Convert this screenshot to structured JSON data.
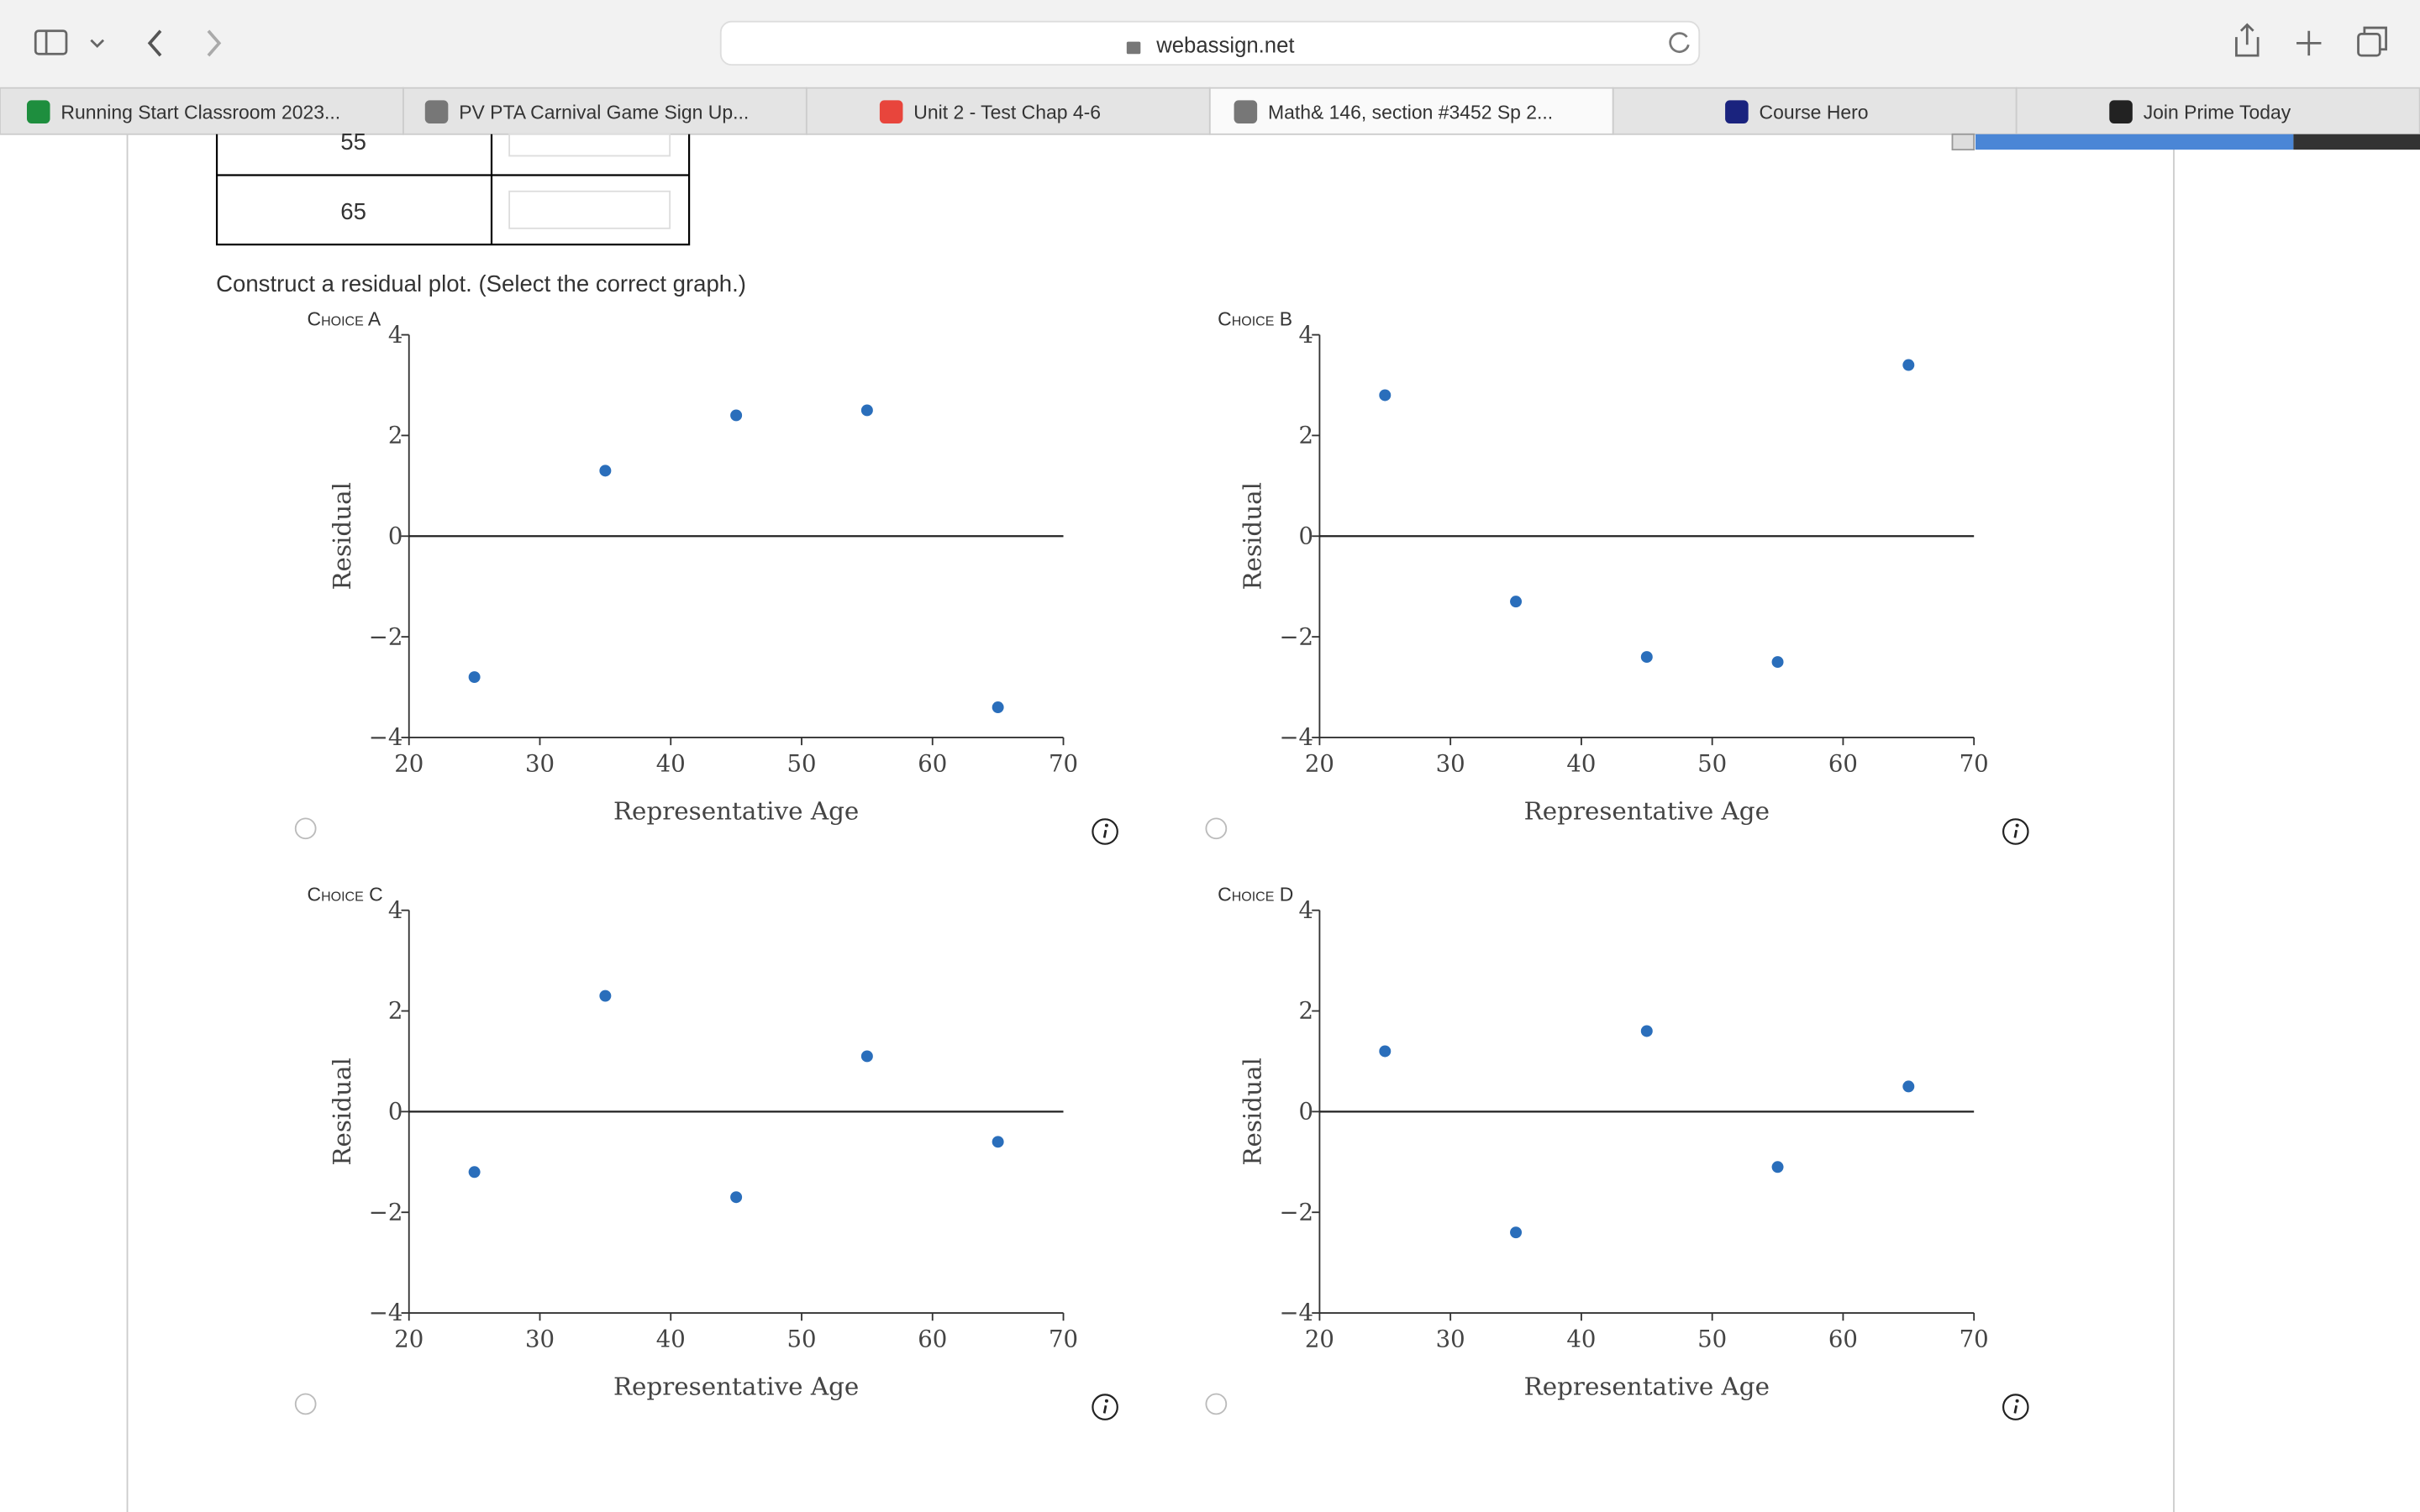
{
  "browser": {
    "url": "webassign.net",
    "tabs": [
      "Running Start Classroom 2023...",
      "PV PTA Carnival Game Sign Up...",
      "Unit 2 - Test Chap 4-6",
      "Math& 146, section #3452 Sp 2...",
      "Course Hero",
      "Join Prime Today"
    ]
  },
  "table_rows": [
    "55",
    "65"
  ],
  "prompt": "Construct a residual plot. (Select the correct graph.)",
  "choices": [
    {
      "label": "Choice A",
      "chart_data": {
        "type": "scatter",
        "x_label": "Representative Age",
        "y_label": "Residual",
        "color": "#2a6ebb",
        "x": [
          25,
          35,
          45,
          55,
          65
        ],
        "values": [
          -2.8,
          1.3,
          2.4,
          2.5,
          -3.4
        ],
        "xlim": [
          20,
          70
        ],
        "ylim": [
          -4,
          4
        ],
        "xticks": [
          20,
          30,
          40,
          50,
          60,
          70
        ],
        "yticks": [
          {
            "value": -4,
            "label": "−4"
          },
          {
            "value": -2,
            "label": "−2"
          },
          0,
          2,
          4
        ]
      }
    },
    {
      "label": "Choice B",
      "chart_data": {
        "type": "scatter",
        "x_label": "Representative Age",
        "y_label": "Residual",
        "color": "#2a6ebb",
        "x": [
          25,
          35,
          45,
          55,
          65
        ],
        "values": [
          2.8,
          -1.3,
          -2.4,
          -2.5,
          3.4
        ],
        "xlim": [
          20,
          70
        ],
        "ylim": [
          -4,
          4
        ],
        "xticks": [
          20,
          30,
          40,
          50,
          60,
          70
        ],
        "yticks": [
          {
            "value": -4,
            "label": "−4"
          },
          {
            "value": -2,
            "label": "−2"
          },
          0,
          2,
          4
        ]
      }
    },
    {
      "label": "Choice C",
      "chart_data": {
        "type": "scatter",
        "x_label": "Representative Age",
        "y_label": "Residual",
        "color": "#2a6ebb",
        "x": [
          25,
          35,
          45,
          55,
          65
        ],
        "values": [
          -1.2,
          2.3,
          -1.7,
          1.1,
          -0.6
        ],
        "xlim": [
          20,
          70
        ],
        "ylim": [
          -4,
          4
        ],
        "xticks": [
          20,
          30,
          40,
          50,
          60,
          70
        ],
        "yticks": [
          {
            "value": -4,
            "label": "−4"
          },
          {
            "value": -2,
            "label": "−2"
          },
          0,
          2,
          4
        ]
      }
    },
    {
      "label": "Choice D",
      "chart_data": {
        "type": "scatter",
        "x_label": "Representative Age",
        "y_label": "Residual",
        "color": "#2a6ebb",
        "x": [
          25,
          35,
          45,
          55,
          65
        ],
        "values": [
          1.2,
          -2.4,
          1.6,
          -1.1,
          0.5
        ],
        "xlim": [
          20,
          70
        ],
        "ylim": [
          -4,
          4
        ],
        "xticks": [
          20,
          30,
          40,
          50,
          60,
          70
        ],
        "yticks": [
          {
            "value": -4,
            "label": "−4"
          },
          {
            "value": -2,
            "label": "−2"
          },
          0,
          2,
          4
        ]
      }
    }
  ]
}
